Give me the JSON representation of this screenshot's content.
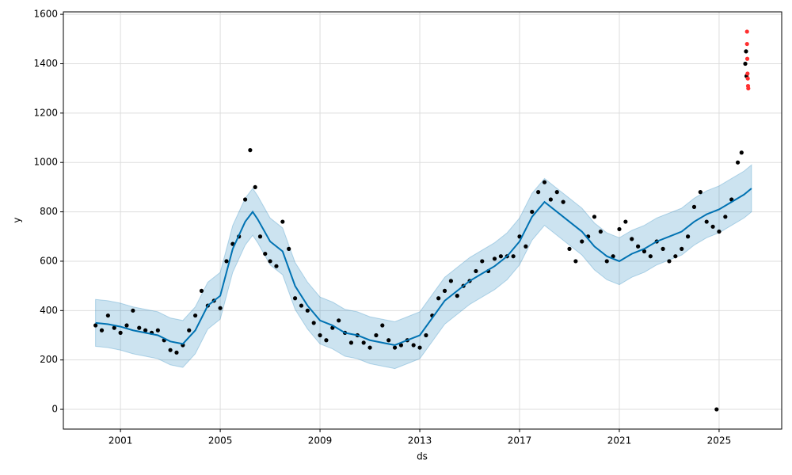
{
  "chart_data": {
    "type": "forecast",
    "xlabel": "ds",
    "ylabel": "y",
    "xlim": [
      1998.71,
      2027.51
    ],
    "ylim": [
      -80,
      1610
    ],
    "xticks": [
      2001,
      2005,
      2009,
      2013,
      2017,
      2021,
      2025
    ],
    "yticks": [
      0,
      200,
      400,
      600,
      800,
      1000,
      1200,
      1400,
      1600
    ],
    "grid": true,
    "forecast": {
      "color": "#0072B2",
      "x": [
        2000,
        2000.5,
        2001,
        2001.5,
        2002,
        2002.5,
        2003,
        2003.5,
        2004,
        2004.5,
        2005,
        2005.5,
        2006,
        2006.3,
        2006.5,
        2007,
        2007.5,
        2008,
        2008.5,
        2009,
        2009.5,
        2010,
        2010.5,
        2011,
        2011.5,
        2012,
        2012.5,
        2013,
        2013.5,
        2014,
        2014.5,
        2015,
        2015.5,
        2016,
        2016.5,
        2017,
        2017.5,
        2018,
        2018.5,
        2019,
        2019.5,
        2020,
        2020.5,
        2021,
        2021.5,
        2022,
        2022.5,
        2023,
        2023.5,
        2024,
        2024.5,
        2025,
        2025.5,
        2026,
        2026.3
      ],
      "values": [
        350,
        345,
        335,
        320,
        310,
        300,
        275,
        265,
        320,
        420,
        460,
        650,
        760,
        800,
        770,
        680,
        640,
        500,
        420,
        360,
        340,
        310,
        300,
        280,
        270,
        260,
        280,
        300,
        370,
        440,
        480,
        520,
        550,
        580,
        620,
        680,
        780,
        840,
        800,
        760,
        720,
        660,
        620,
        600,
        630,
        650,
        680,
        700,
        720,
        760,
        790,
        810,
        840,
        870,
        895
      ],
      "lower": [
        255,
        250,
        240,
        225,
        215,
        205,
        180,
        170,
        225,
        325,
        365,
        555,
        665,
        705,
        675,
        585,
        545,
        405,
        325,
        265,
        245,
        215,
        205,
        185,
        175,
        165,
        185,
        205,
        275,
        345,
        385,
        425,
        455,
        485,
        525,
        585,
        685,
        745,
        705,
        665,
        625,
        565,
        525,
        505,
        535,
        555,
        585,
        605,
        625,
        665,
        695,
        715,
        745,
        775,
        800
      ],
      "upper": [
        445,
        440,
        430,
        415,
        405,
        395,
        370,
        360,
        415,
        515,
        555,
        745,
        855,
        895,
        865,
        775,
        735,
        595,
        515,
        455,
        435,
        405,
        395,
        375,
        365,
        355,
        375,
        395,
        465,
        535,
        575,
        615,
        645,
        675,
        715,
        775,
        875,
        935,
        895,
        855,
        815,
        755,
        715,
        695,
        725,
        745,
        775,
        795,
        815,
        855,
        885,
        905,
        935,
        965,
        990
      ]
    },
    "series": [
      {
        "color": "#000000",
        "x": [
          2000,
          2000.25,
          2000.5,
          2000.75,
          2001,
          2001.25,
          2001.5,
          2001.75,
          2002,
          2002.25,
          2002.5,
          2002.75,
          2003,
          2003.25,
          2003.5,
          2003.75,
          2004,
          2004.25,
          2004.5,
          2004.75,
          2005,
          2005.25,
          2005.5,
          2005.75,
          2006,
          2006.2,
          2006.4,
          2006.6,
          2006.8,
          2007,
          2007.25,
          2007.5,
          2007.75,
          2008,
          2008.25,
          2008.5,
          2008.75,
          2009,
          2009.25,
          2009.5,
          2009.75,
          2010,
          2010.25,
          2010.5,
          2010.75,
          2011,
          2011.25,
          2011.5,
          2011.75,
          2012,
          2012.25,
          2012.5,
          2012.75,
          2013,
          2013.25,
          2013.5,
          2013.75,
          2014,
          2014.25,
          2014.5,
          2014.75,
          2015,
          2015.25,
          2015.5,
          2015.75,
          2016,
          2016.25,
          2016.5,
          2016.75,
          2017,
          2017.25,
          2017.5,
          2017.75,
          2018,
          2018.25,
          2018.5,
          2018.75,
          2019,
          2019.25,
          2019.5,
          2019.75,
          2020,
          2020.25,
          2020.5,
          2020.75,
          2021,
          2021.25,
          2021.5,
          2021.75,
          2022,
          2022.25,
          2022.5,
          2022.75,
          2023,
          2023.25,
          2023.5,
          2023.75,
          2024,
          2024.25,
          2024.5,
          2024.75,
          2024.9,
          2025,
          2025.25,
          2025.5,
          2025.75,
          2025.9,
          2026.05,
          2026.08,
          2026.1
        ],
        "values": [
          340,
          320,
          380,
          330,
          310,
          340,
          400,
          330,
          320,
          310,
          320,
          280,
          240,
          230,
          260,
          320,
          380,
          480,
          420,
          440,
          410,
          600,
          670,
          700,
          850,
          1050,
          900,
          700,
          630,
          600,
          580,
          760,
          650,
          450,
          420,
          400,
          350,
          300,
          280,
          330,
          360,
          310,
          270,
          300,
          270,
          250,
          300,
          340,
          280,
          250,
          260,
          280,
          260,
          250,
          300,
          380,
          450,
          480,
          520,
          460,
          500,
          520,
          560,
          600,
          560,
          610,
          620,
          620,
          620,
          700,
          660,
          800,
          880,
          920,
          850,
          880,
          840,
          650,
          600,
          680,
          700,
          780,
          720,
          600,
          620,
          730,
          760,
          690,
          660,
          640,
          620,
          680,
          650,
          600,
          620,
          650,
          700,
          820,
          880,
          760,
          740,
          0,
          720,
          780,
          850,
          1000,
          1040,
          1400,
          1450,
          1350
        ]
      },
      {
        "color": "#ff3030",
        "x": [
          2026.12,
          2026.12,
          2026.13,
          2026.14,
          2026.15,
          2026.16,
          2026.17
        ],
        "values": [
          1530,
          1480,
          1420,
          1360,
          1340,
          1310,
          1300
        ]
      }
    ]
  }
}
